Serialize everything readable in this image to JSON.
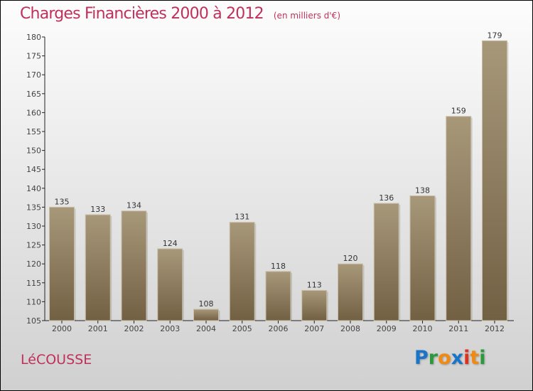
{
  "chart_data": {
    "type": "bar",
    "title": "Charges Financières 2000 à 2012",
    "subtitle": "(en milliers d'€)",
    "categories": [
      "2000",
      "2001",
      "2002",
      "2003",
      "2004",
      "2005",
      "2006",
      "2007",
      "2008",
      "2009",
      "2010",
      "2011",
      "2012"
    ],
    "values": [
      135,
      133,
      134,
      124,
      108,
      131,
      118,
      113,
      120,
      136,
      138,
      159,
      179
    ],
    "ylim": [
      105,
      180
    ],
    "yticks": [
      105,
      110,
      115,
      120,
      125,
      130,
      135,
      140,
      145,
      150,
      155,
      160,
      165,
      170,
      175,
      180
    ],
    "xlabel": "",
    "ylabel": "",
    "bar_color": "#8f7b5c"
  },
  "commune": "LéCOUSSE",
  "logo": "Proxiti"
}
